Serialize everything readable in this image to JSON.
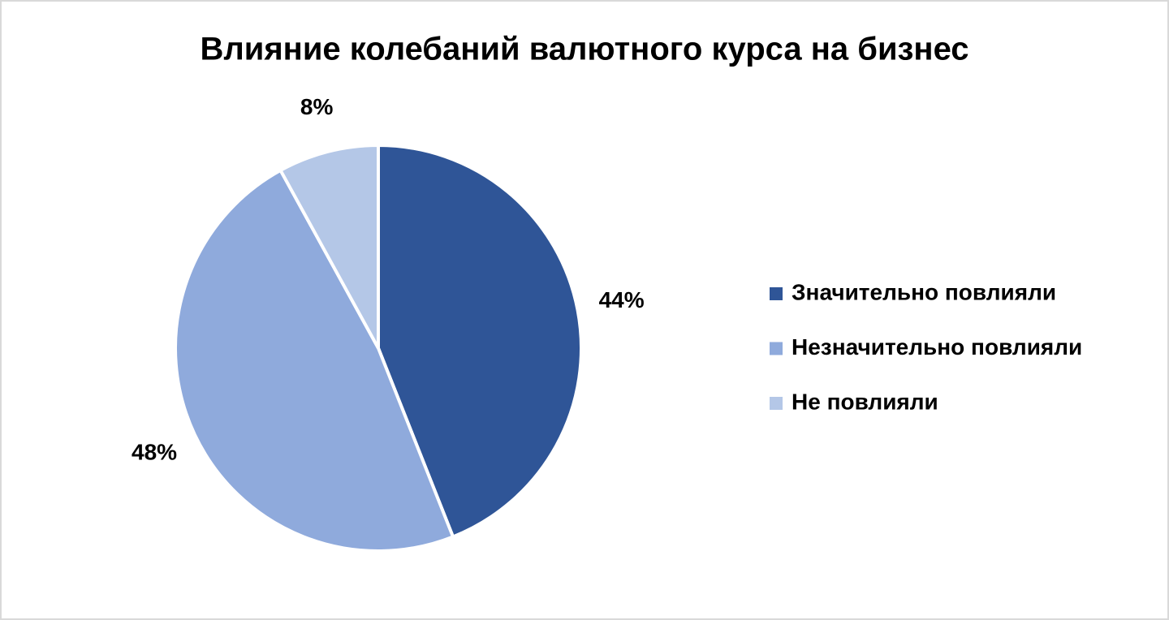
{
  "chart_data": {
    "type": "pie",
    "title": "Влияние колебаний валютного курса на бизнес",
    "categories": [
      "Значительно повлияли",
      "Незначительно повлияли",
      "Не повлияли"
    ],
    "values": [
      44,
      48,
      8
    ],
    "value_labels": [
      "44%",
      "48%",
      "8%"
    ],
    "colors": [
      "#2f5597",
      "#8faadc",
      "#b4c7e7"
    ],
    "legend": "right"
  }
}
